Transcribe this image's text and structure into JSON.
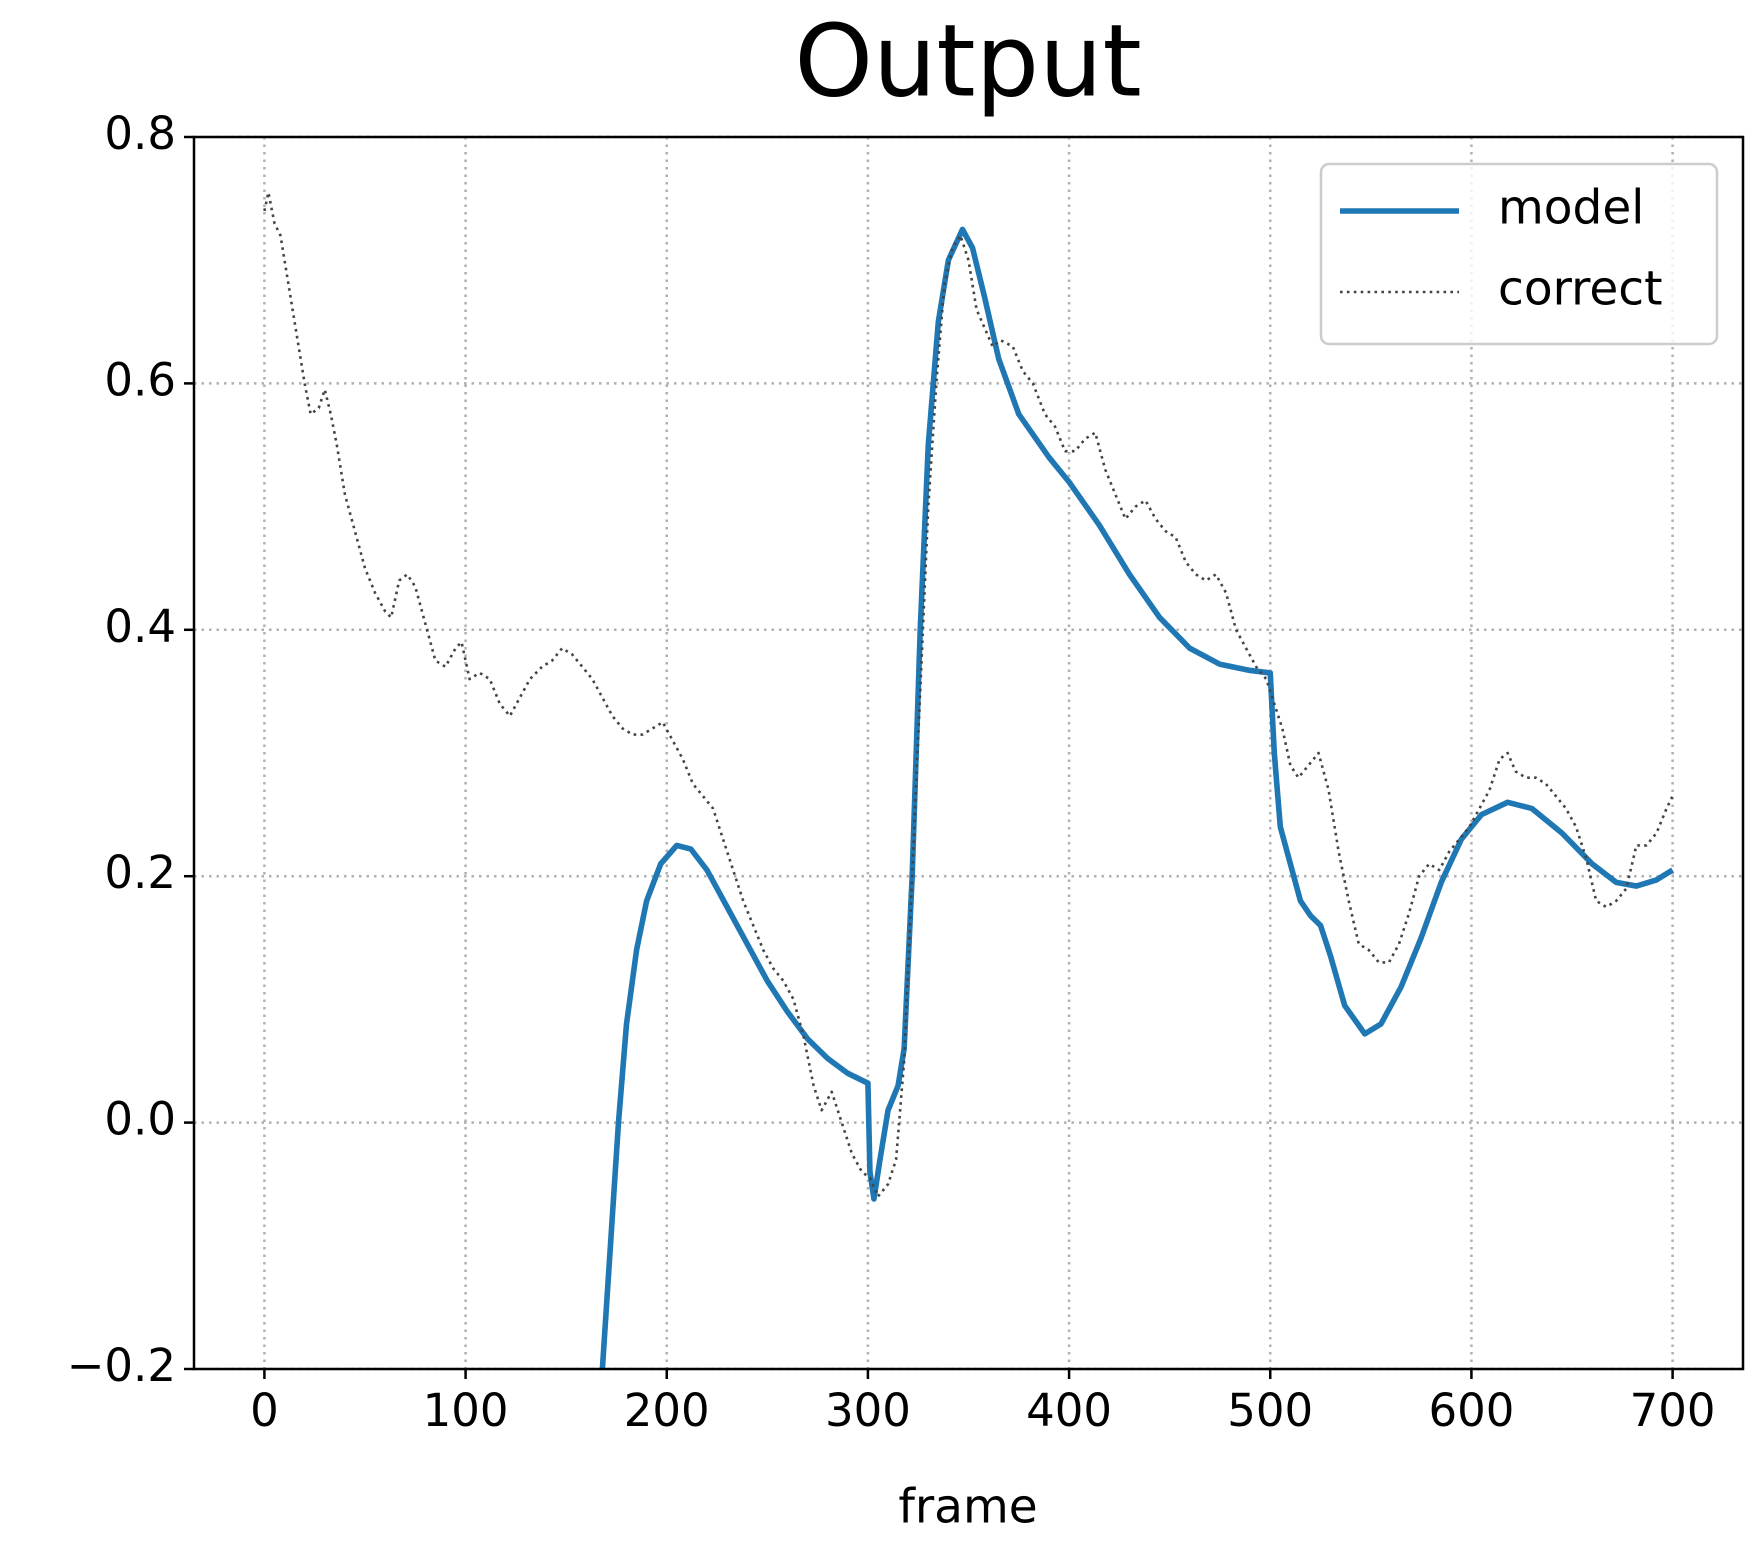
{
  "chart_data": {
    "type": "line",
    "title": "Output",
    "xlabel": "frame",
    "xlim": [
      -35,
      735
    ],
    "ylim": [
      -0.2,
      0.8
    ],
    "xticks": [
      0,
      100,
      200,
      300,
      400,
      500,
      600,
      700
    ],
    "yticks": [
      {
        "value": -0.2,
        "label": "−0.2"
      },
      {
        "value": 0,
        "label": "0.0"
      },
      0.2,
      0.4,
      0.6,
      0.8
    ],
    "grid": true,
    "legend": "upper right",
    "series": [
      {
        "name": "model",
        "color": "#1f77b4",
        "style": "solid",
        "x": [
          168,
          172,
          176,
          180,
          185,
          190,
          197,
          205,
          212,
          220,
          230,
          240,
          250,
          260,
          270,
          280,
          290,
          300,
          301,
          303,
          306,
          310,
          315,
          318,
          322,
          326,
          330,
          335,
          340,
          347,
          352,
          358,
          365,
          375,
          390,
          400,
          415,
          430,
          445,
          460,
          475,
          490,
          500,
          502,
          505,
          510,
          515,
          520,
          525,
          530,
          537,
          547,
          555,
          565,
          575,
          585,
          595,
          605,
          618,
          630,
          645,
          660,
          672,
          682,
          692,
          700
        ],
        "values": [
          -0.2,
          -0.1,
          0.0,
          0.08,
          0.14,
          0.18,
          0.21,
          0.225,
          0.222,
          0.205,
          0.175,
          0.145,
          0.115,
          0.09,
          0.068,
          0.052,
          0.04,
          0.032,
          -0.04,
          -0.062,
          -0.03,
          0.01,
          0.03,
          0.06,
          0.2,
          0.4,
          0.55,
          0.65,
          0.7,
          0.725,
          0.71,
          0.67,
          0.62,
          0.575,
          0.54,
          0.52,
          0.485,
          0.445,
          0.41,
          0.385,
          0.372,
          0.367,
          0.365,
          0.3,
          0.24,
          0.21,
          0.18,
          0.168,
          0.16,
          0.135,
          0.095,
          0.072,
          0.08,
          0.11,
          0.15,
          0.195,
          0.23,
          0.25,
          0.26,
          0.255,
          0.235,
          0.21,
          0.195,
          0.192,
          0.197,
          0.205
        ]
      },
      {
        "name": "correct",
        "color": "#444444",
        "style": "dotted",
        "x": [
          0,
          2,
          5,
          8,
          12,
          16,
          20,
          23,
          27,
          30,
          33,
          36,
          40,
          45,
          50,
          55,
          60,
          63,
          67,
          71,
          75,
          80,
          85,
          90,
          95,
          98,
          102,
          107,
          112,
          117,
          122,
          127,
          132,
          138,
          143,
          148,
          153,
          158,
          163,
          168,
          173,
          178,
          183,
          188,
          193,
          198,
          203,
          208,
          213,
          218,
          223,
          228,
          233,
          238,
          243,
          248,
          253,
          258,
          263,
          268,
          273,
          277,
          282,
          287,
          292,
          297,
          301,
          305,
          310,
          314,
          318,
          322,
          326,
          330,
          334,
          338,
          342,
          346,
          350,
          354,
          358,
          362,
          366,
          372,
          377,
          382,
          388,
          393,
          398,
          403,
          408,
          413,
          418,
          423,
          428,
          433,
          438,
          443,
          448,
          453,
          458,
          463,
          468,
          473,
          478,
          483,
          488,
          493,
          498,
          502,
          506,
          510,
          514,
          519,
          524,
          529,
          534,
          539,
          544,
          549,
          554,
          559,
          564,
          569,
          574,
          579,
          584,
          589,
          594,
          599,
          604,
          609,
          614,
          618,
          622,
          627,
          632,
          637,
          642,
          647,
          652,
          657,
          662,
          667,
          672,
          677,
          682,
          687,
          692,
          697,
          700
        ],
        "values": [
          0.74,
          0.755,
          0.73,
          0.72,
          0.68,
          0.64,
          0.6,
          0.575,
          0.58,
          0.595,
          0.575,
          0.55,
          0.51,
          0.48,
          0.45,
          0.43,
          0.415,
          0.41,
          0.44,
          0.445,
          0.435,
          0.405,
          0.375,
          0.37,
          0.385,
          0.39,
          0.36,
          0.365,
          0.36,
          0.34,
          0.33,
          0.345,
          0.36,
          0.37,
          0.375,
          0.385,
          0.38,
          0.37,
          0.36,
          0.345,
          0.33,
          0.32,
          0.315,
          0.315,
          0.32,
          0.325,
          0.31,
          0.295,
          0.275,
          0.265,
          0.255,
          0.23,
          0.205,
          0.18,
          0.16,
          0.14,
          0.125,
          0.115,
          0.1,
          0.07,
          0.03,
          0.01,
          0.025,
          0.0,
          -0.025,
          -0.04,
          -0.045,
          -0.06,
          -0.05,
          -0.03,
          0.05,
          0.2,
          0.35,
          0.5,
          0.6,
          0.68,
          0.71,
          0.72,
          0.7,
          0.66,
          0.645,
          0.63,
          0.635,
          0.63,
          0.61,
          0.6,
          0.575,
          0.565,
          0.545,
          0.545,
          0.555,
          0.56,
          0.53,
          0.51,
          0.49,
          0.5,
          0.505,
          0.49,
          0.48,
          0.475,
          0.455,
          0.445,
          0.44,
          0.445,
          0.43,
          0.4,
          0.385,
          0.37,
          0.36,
          0.34,
          0.32,
          0.29,
          0.28,
          0.29,
          0.3,
          0.27,
          0.22,
          0.18,
          0.145,
          0.14,
          0.13,
          0.13,
          0.145,
          0.17,
          0.2,
          0.21,
          0.205,
          0.22,
          0.23,
          0.24,
          0.255,
          0.27,
          0.295,
          0.3,
          0.285,
          0.28,
          0.28,
          0.275,
          0.265,
          0.255,
          0.24,
          0.215,
          0.18,
          0.175,
          0.18,
          0.19,
          0.225,
          0.225,
          0.235,
          0.255,
          0.265
        ]
      }
    ]
  }
}
